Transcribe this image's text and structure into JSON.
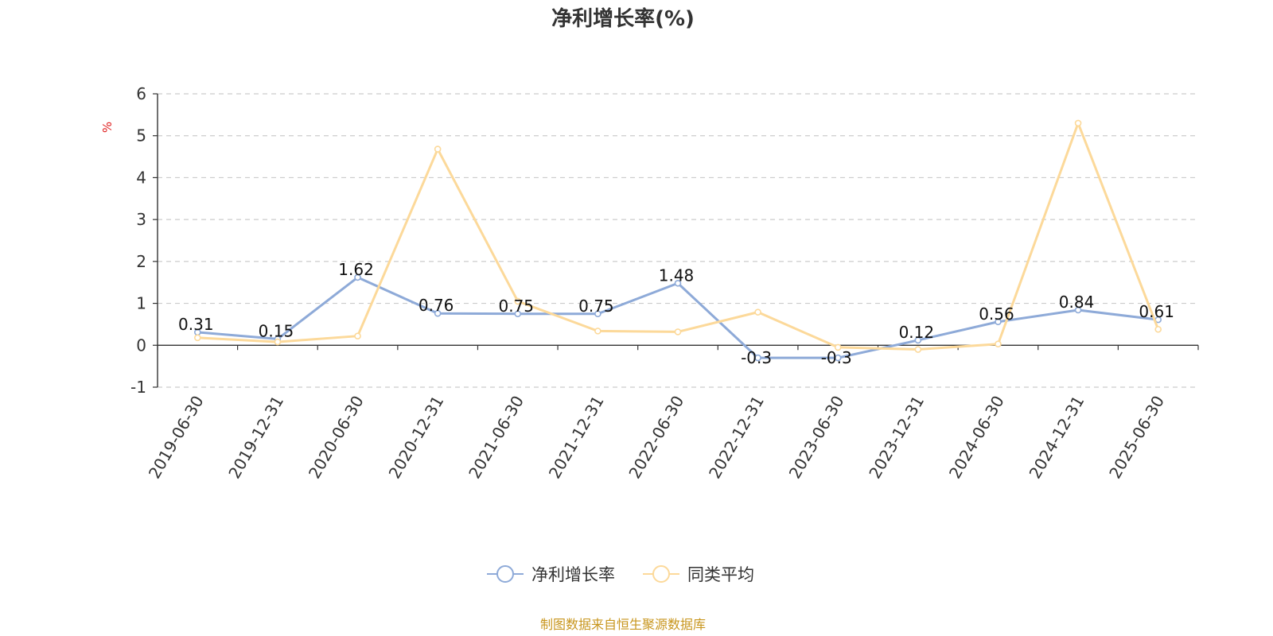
{
  "chart_data": {
    "type": "line",
    "title": "净利增长率(%)",
    "ylabel": "%",
    "ylim": [
      -1,
      6
    ],
    "yticks": [
      -1,
      0,
      1,
      2,
      3,
      4,
      5,
      6
    ],
    "grid": true,
    "legend_position": "bottom",
    "categories": [
      "2019-06-30",
      "2019-12-31",
      "2020-06-30",
      "2020-12-31",
      "2021-06-30",
      "2021-12-31",
      "2022-06-30",
      "2022-12-31",
      "2023-06-30",
      "2023-12-31",
      "2024-06-30",
      "2024-12-31",
      "2025-06-30"
    ],
    "series": [
      {
        "name": "净利增长率",
        "color": "#8eaad8",
        "values": [
          0.31,
          0.15,
          1.62,
          0.76,
          0.75,
          0.75,
          1.48,
          -0.3,
          -0.3,
          0.12,
          0.56,
          0.84,
          0.61
        ],
        "labels": [
          "0.31",
          "0.15",
          "1.62",
          "0.76",
          "0.75",
          "0.75",
          "1.48",
          "-0.3",
          "-0.3",
          "0.12",
          "0.56",
          "0.84",
          "0.61"
        ]
      },
      {
        "name": "同类平均",
        "color": "#fcd99a",
        "values": [
          0.18,
          0.08,
          0.22,
          4.68,
          1.05,
          0.34,
          0.32,
          0.79,
          -0.05,
          -0.1,
          0.03,
          5.3,
          0.38
        ]
      }
    ]
  },
  "source_text": "制图数据来自恒生聚源数据库"
}
